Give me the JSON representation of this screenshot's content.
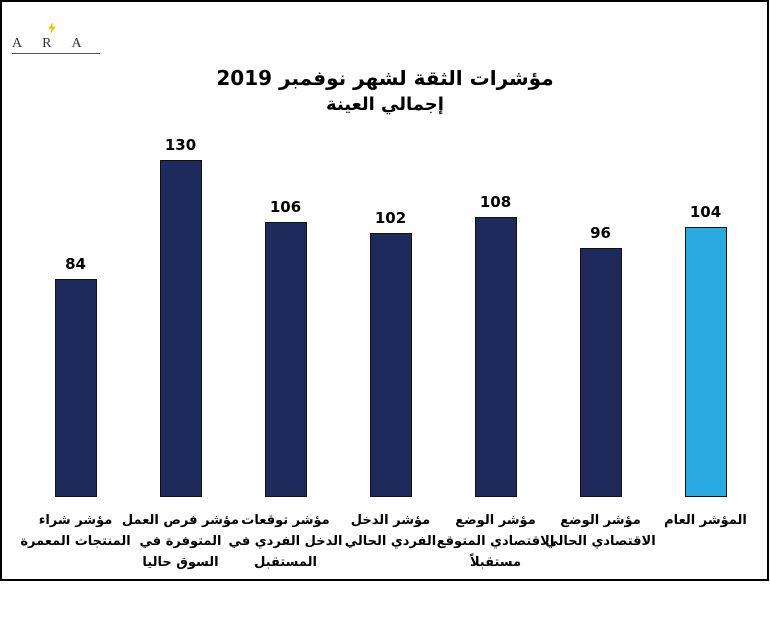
{
  "chart_data": {
    "type": "bar",
    "logo": "ARA",
    "title": "مؤشرات الثقة لشهر نوفمبر 2019",
    "subtitle": "إجمالي العينة",
    "categories": [
      "مؤشر شراء المنتجات المعمرة",
      "مؤشر فرص العمل المتوفرة في السوق حاليا",
      "مؤشر توقعات الدخل الفردي في المستقبل",
      "مؤشر الدخل الفردي الحالي",
      "مؤشر الوضع الاقتصادي المتوقع مستقبلاً",
      "مؤشر الوضع الاقتصادي الحالي",
      "المؤشر العام"
    ],
    "values": [
      84,
      130,
      106,
      102,
      108,
      96,
      104
    ],
    "colors": [
      "#1f2a5c",
      "#1f2a5c",
      "#1f2a5c",
      "#1f2a5c",
      "#1f2a5c",
      "#1f2a5c",
      "#29abe2"
    ]
  }
}
